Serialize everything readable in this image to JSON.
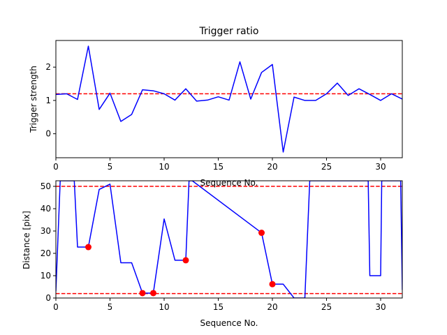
{
  "chart_data": [
    {
      "type": "line",
      "title": "Trigger ratio",
      "xlabel": "Sequence No.",
      "ylabel": "Trigger strength",
      "xlim": [
        0,
        32
      ],
      "ylim": [
        -0.72,
        2.8
      ],
      "xticks": [
        0,
        5,
        10,
        15,
        20,
        25,
        30
      ],
      "yticks": [
        0,
        1,
        2
      ],
      "series": [
        {
          "color": "#0000ff",
          "x": [
            0,
            1,
            2,
            3,
            4,
            5,
            6,
            7,
            8,
            9,
            10,
            11,
            12,
            13,
            14,
            15,
            16,
            17,
            18,
            19,
            20,
            21,
            22,
            23,
            24,
            25,
            26,
            27,
            28,
            29,
            30,
            31,
            32
          ],
          "y": [
            1.18,
            1.2,
            1.03,
            2.63,
            0.73,
            1.22,
            0.37,
            0.58,
            1.32,
            1.29,
            1.2,
            1.01,
            1.35,
            0.98,
            1.01,
            1.11,
            1.01,
            2.16,
            1.04,
            1.84,
            2.08,
            -0.55,
            1.1,
            1.0,
            1.0,
            1.2,
            1.52,
            1.15,
            1.35,
            1.18,
            1.0,
            1.2,
            1.04
          ]
        }
      ],
      "hlines": [
        {
          "y": 1.2,
          "color": "#ff0000",
          "style": "dashed"
        }
      ]
    },
    {
      "type": "line",
      "title": "",
      "xlabel": "Sequence No.",
      "ylabel": "Distance [pix]",
      "xlim": [
        0,
        32
      ],
      "ylim": [
        0,
        52.5
      ],
      "xticks": [
        0,
        5,
        10,
        15,
        20,
        25,
        30
      ],
      "yticks": [
        0,
        10,
        20,
        30,
        40,
        50
      ],
      "series": [
        {
          "color": "#0000ff",
          "x": [
            0,
            0.4,
            0.6,
            1.7,
            2,
            3,
            4,
            5,
            6,
            7,
            8,
            9,
            10,
            11,
            12,
            12.3,
            12.6,
            19,
            20,
            21,
            22,
            23,
            23.45,
            23.7,
            28.85,
            29,
            30,
            30.1,
            30.3,
            31.85,
            32
          ],
          "y": [
            3,
            52.5,
            52.5,
            52.5,
            22.8,
            22.8,
            48.6,
            51,
            15.8,
            15.8,
            2.2,
            2.2,
            35.4,
            16.9,
            16.9,
            52.5,
            52.5,
            29.2,
            6.2,
            6.2,
            0,
            0,
            52.5,
            52.5,
            52.5,
            10,
            10,
            52.5,
            52.5,
            52.5,
            3.6
          ]
        }
      ],
      "markers": {
        "color": "#ff0000",
        "x": [
          3,
          8,
          9,
          12,
          19,
          20
        ],
        "y": [
          22.8,
          2.2,
          2.2,
          16.9,
          29.2,
          6.2
        ]
      },
      "hlines": [
        {
          "y": 50,
          "color": "#ff0000",
          "style": "dashed"
        },
        {
          "y": 2,
          "color": "#ff0000",
          "style": "dashed"
        }
      ]
    }
  ]
}
